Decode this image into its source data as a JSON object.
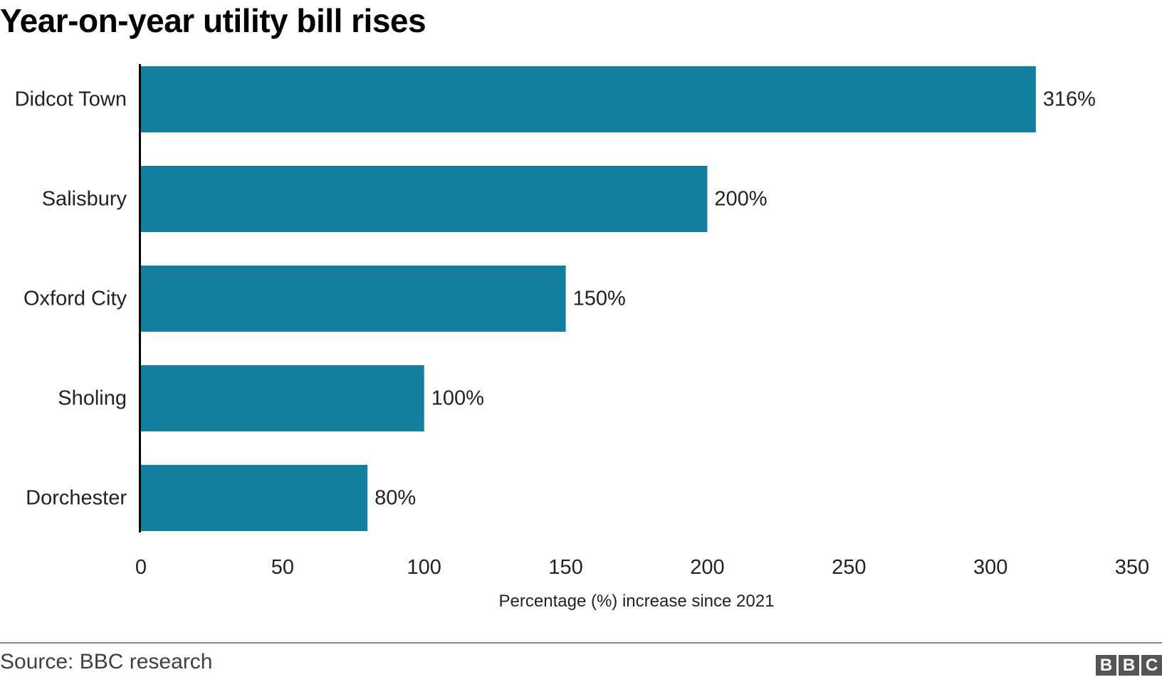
{
  "chart_data": {
    "type": "bar",
    "orientation": "horizontal",
    "title": "Year-on-year utility bill rises",
    "categories": [
      "Didcot Town",
      "Salisbury",
      "Oxford City",
      "Sholing",
      "Dorchester"
    ],
    "values": [
      316,
      200,
      150,
      100,
      80
    ],
    "data_labels": [
      "316%",
      "200%",
      "150%",
      "100%",
      "80%"
    ],
    "xlabel": "Percentage (%) increase since 2021",
    "ylabel": "",
    "xlim": [
      0,
      350
    ],
    "x_ticks": [
      0,
      50,
      100,
      150,
      200,
      250,
      300,
      350
    ],
    "grid": false,
    "legend": "none",
    "bar_color": "#1380A1"
  },
  "footer": {
    "source": "Source: BBC research",
    "logo_letters": [
      "B",
      "B",
      "C"
    ]
  }
}
